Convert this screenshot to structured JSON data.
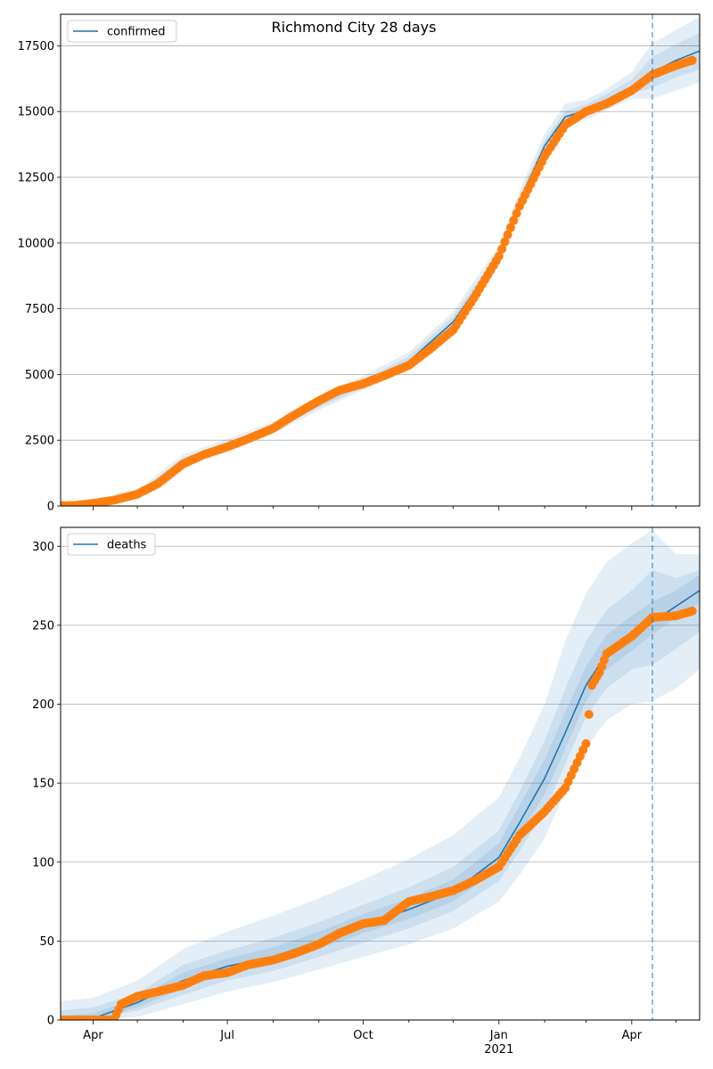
{
  "title": "Richmond City 28 days",
  "colors": {
    "model_line": "#1f77b4",
    "band_fill": "#1f77b4",
    "observed_points": "#ff7f0e",
    "forecast_marker": "#1f77b4"
  },
  "x_axis": {
    "range": [
      "2020-03-10",
      "2021-05-17"
    ],
    "ticks": [
      {
        "date": "2020-04-01",
        "label": "Apr"
      },
      {
        "date": "2020-07-01",
        "label": "Jul"
      },
      {
        "date": "2020-10-01",
        "label": "Oct"
      },
      {
        "date": "2021-01-01",
        "label": "Jan"
      },
      {
        "date": "2021-04-01",
        "label": "Apr"
      }
    ],
    "year_label": {
      "date": "2021-01-01",
      "label": "2021"
    },
    "forecast_start": "2021-04-15"
  },
  "chart_data": [
    {
      "type": "line",
      "legend": "confirmed",
      "legend_position": "upper-left",
      "grid": "horizontal",
      "ylim": [
        0,
        18700
      ],
      "yticks": [
        0,
        2500,
        5000,
        7500,
        10000,
        12500,
        15000,
        17500
      ],
      "model": {
        "x": [
          "2020-03-10",
          "2020-04-01",
          "2020-05-01",
          "2020-06-01",
          "2020-07-01",
          "2020-08-01",
          "2020-09-01",
          "2020-10-01",
          "2020-11-01",
          "2020-12-01",
          "2021-01-01",
          "2021-01-15",
          "2021-02-01",
          "2021-02-15",
          "2021-03-01",
          "2021-03-15",
          "2021-04-01",
          "2021-04-15",
          "2021-05-01",
          "2021-05-17"
        ],
        "y": [
          20,
          60,
          450,
          1700,
          2300,
          2950,
          3900,
          4650,
          5500,
          7000,
          9500,
          11600,
          13700,
          14800,
          15050,
          15450,
          15950,
          16500,
          16950,
          17300
        ]
      },
      "bands": [
        {
          "lower": [
            0,
            0,
            350,
            1500,
            2100,
            2750,
            3650,
            4400,
            5200,
            6600,
            9100,
            11200,
            13300,
            14400,
            14700,
            15050,
            15500,
            15500,
            15800,
            16100
          ],
          "upper": [
            60,
            150,
            600,
            1950,
            2550,
            3200,
            4150,
            4950,
            5850,
            7400,
            9900,
            12000,
            14150,
            15300,
            15450,
            15850,
            16500,
            17600,
            18100,
            18600
          ]
        },
        {
          "lower": [
            0,
            20,
            400,
            1600,
            2200,
            2850,
            3750,
            4500,
            5320,
            6780,
            9300,
            11400,
            13500,
            14600,
            14850,
            15250,
            15700,
            15900,
            16300,
            16600
          ],
          "upper": [
            40,
            100,
            520,
            1820,
            2420,
            3070,
            4020,
            4800,
            5690,
            7220,
            9700,
            11800,
            13920,
            15020,
            15270,
            15670,
            16220,
            17100,
            17550,
            18000
          ]
        }
      ],
      "observed": {
        "x": [
          "2020-03-10",
          "2020-03-20",
          "2020-04-01",
          "2020-04-15",
          "2020-05-01",
          "2020-05-15",
          "2020-06-01",
          "2020-06-15",
          "2020-07-01",
          "2020-07-15",
          "2020-08-01",
          "2020-08-15",
          "2020-09-01",
          "2020-09-15",
          "2020-10-01",
          "2020-10-15",
          "2020-11-01",
          "2020-11-15",
          "2020-12-01",
          "2020-12-15",
          "2021-01-01",
          "2021-01-15",
          "2021-02-01",
          "2021-02-15",
          "2021-03-01",
          "2021-03-15",
          "2021-04-01",
          "2021-04-15",
          "2021-05-01",
          "2021-05-12"
        ],
        "y": [
          10,
          20,
          100,
          220,
          450,
          850,
          1600,
          1950,
          2250,
          2550,
          2950,
          3450,
          4000,
          4400,
          4650,
          4950,
          5350,
          5950,
          6700,
          7900,
          9500,
          11400,
          13300,
          14500,
          15000,
          15300,
          15800,
          16400,
          16750,
          16950
        ]
      }
    },
    {
      "type": "line",
      "legend": "deaths",
      "legend_position": "upper-left",
      "grid": "horizontal",
      "ylim": [
        0,
        312
      ],
      "yticks": [
        0,
        50,
        100,
        150,
        200,
        250,
        300
      ],
      "model": {
        "x": [
          "2020-03-10",
          "2020-04-01",
          "2020-05-01",
          "2020-06-01",
          "2020-07-01",
          "2020-08-01",
          "2020-09-01",
          "2020-10-01",
          "2020-11-01",
          "2020-12-01",
          "2021-01-01",
          "2021-01-15",
          "2021-02-01",
          "2021-02-15",
          "2021-03-01",
          "2021-03-15",
          "2021-04-01",
          "2021-04-15",
          "2021-05-01",
          "2021-05-17"
        ],
        "y": [
          0,
          1,
          11,
          25,
          34,
          40,
          50,
          60,
          70,
          81,
          103,
          125,
          153,
          182,
          212,
          232,
          243,
          252,
          262,
          272
        ]
      },
      "bands": [
        {
          "lower": [
            0,
            0,
            2,
            10,
            18,
            24,
            32,
            40,
            48,
            58,
            75,
            92,
            115,
            145,
            172,
            190,
            200,
            202,
            210,
            222
          ],
          "upper": [
            12,
            14,
            25,
            45,
            56,
            66,
            77,
            89,
            102,
            117,
            141,
            166,
            200,
            240,
            270,
            290,
            302,
            310,
            295,
            295
          ]
        },
        {
          "lower": [
            0,
            0,
            6,
            16,
            25,
            31,
            40,
            49,
            58,
            69,
            88,
            107,
            132,
            162,
            192,
            210,
            222,
            225,
            235,
            246
          ],
          "upper": [
            6,
            8,
            17,
            35,
            44,
            52,
            62,
            73,
            84,
            97,
            120,
            145,
            177,
            210,
            240,
            260,
            272,
            285,
            280,
            285
          ]
        },
        {
          "lower": [
            0,
            0,
            8,
            20,
            29,
            35,
            45,
            55,
            64,
            75,
            96,
            117,
            143,
            172,
            202,
            222,
            234,
            244,
            255,
            264
          ],
          "upper": [
            3,
            4,
            14,
            30,
            39,
            46,
            56,
            67,
            77,
            89,
            112,
            136,
            165,
            195,
            224,
            244,
            256,
            265,
            272,
            282
          ]
        }
      ],
      "observed": {
        "x": [
          "2020-03-10",
          "2020-04-01",
          "2020-04-15",
          "2020-04-20",
          "2020-05-01",
          "2020-05-15",
          "2020-06-01",
          "2020-06-15",
          "2020-07-01",
          "2020-07-15",
          "2020-08-01",
          "2020-08-15",
          "2020-09-01",
          "2020-09-15",
          "2020-10-01",
          "2020-10-15",
          "2020-11-01",
          "2020-11-15",
          "2020-12-01",
          "2020-12-15",
          "2021-01-01",
          "2021-01-15",
          "2021-02-01",
          "2021-02-15",
          "2021-03-01",
          "2021-03-05",
          "2021-03-10",
          "2021-03-15",
          "2021-04-01",
          "2021-04-15",
          "2021-05-01",
          "2021-05-12"
        ],
        "y": [
          0,
          0,
          0,
          10,
          15,
          18,
          22,
          28,
          30,
          35,
          38,
          42,
          48,
          55,
          61,
          63,
          75,
          78,
          82,
          88,
          97,
          117,
          132,
          147,
          175,
          212,
          220,
          232,
          243,
          255,
          256,
          259
        ]
      }
    }
  ]
}
